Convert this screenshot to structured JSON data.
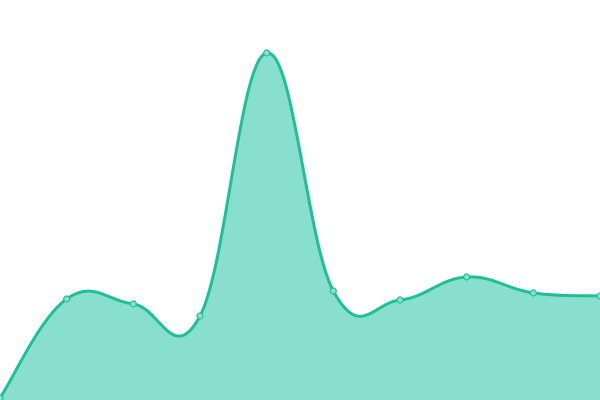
{
  "chart_data": {
    "type": "area",
    "title": "",
    "xlabel": "",
    "ylabel": "",
    "x": [
      0,
      1,
      2,
      3,
      4,
      5,
      6,
      7,
      8,
      9
    ],
    "series": [
      {
        "values": [
          2,
          101,
          96,
          84,
          347,
          109,
          100,
          123,
          107,
          104
        ]
      }
    ],
    "ylim": [
      0,
      400
    ],
    "grid": false,
    "axes_visible": false,
    "legend": "none",
    "colors": {
      "line": "#1fbf98",
      "fill": "#88dfcd",
      "marker_fill": "#88dfcd"
    }
  }
}
